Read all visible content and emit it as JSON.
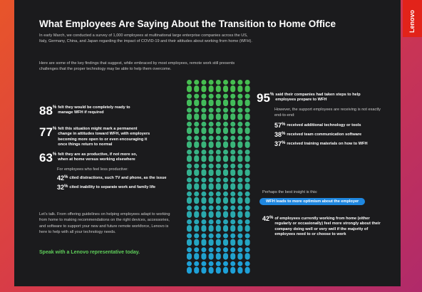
{
  "logo": "Lenovo",
  "title": "What Employees Are Saying About the Transition to Home Office",
  "intro": [
    "In early March, we conducted a survey of 1,000 employees at multinational large enterprise companies across the US, Italy, Germany, China, and Japan regarding the impact of COVID-19 and their attitudes about working from home (WFH).",
    "Here are some of the key findings that suggest, while embraced by most employees, remote work still presents challenges that the proper technology may be able to help them overcome."
  ],
  "left_stats": [
    {
      "number": "88",
      "unit": "%",
      "text": "felt they would be completely ready to manage WFH if required"
    },
    {
      "number": "77",
      "unit": "%",
      "text": "felt this situation might mark a permanent change in attitudes toward WFH, with employers becoming more open to or even encouraging it once things return to normal"
    },
    {
      "number": "63",
      "unit": "%",
      "text": "felt they are as productive, if not more so, when at home versus working elsewhere"
    }
  ],
  "less_productive_intro": "For employees who feel less productive:",
  "less_productive": [
    {
      "number": "42",
      "unit": "%",
      "text": "cited distractions, such TV and phone, as the issue"
    },
    {
      "number": "32",
      "unit": "%",
      "text": "cited inability to separate work and family life"
    }
  ],
  "closing": "Let's talk. From offering guidelines on helping employees adapt to working from home to making recommendations on the right devices, accessories, and software to support your new and future remote workforce, Lenovo is here to help with all your technology needs.",
  "cta": "Speak with a Lenovo representative today.",
  "right_stat": {
    "number": "95",
    "unit": "%",
    "text": "said their companies had taken steps to help employees prepare to WFH"
  },
  "support_intro": "However, the support employees are receiving is not exactly end-to-end:",
  "support": [
    {
      "number": "57",
      "unit": "%",
      "text": "received additional technology or tools"
    },
    {
      "number": "38",
      "unit": "%",
      "text": "received team communication software"
    },
    {
      "number": "37",
      "unit": "%",
      "text": "received training materials on how to WFH"
    }
  ],
  "insight_intro": "Perhaps the best insight is this:",
  "insight_pill": "WFH leads to more optimism about the employer",
  "insight_stat": {
    "number": "42",
    "unit": "%",
    "text": "of employees currently working from home (either regularly or occasionally) feel more strongly about their company doing well or very well if the majority of employees need to or choose to work"
  }
}
